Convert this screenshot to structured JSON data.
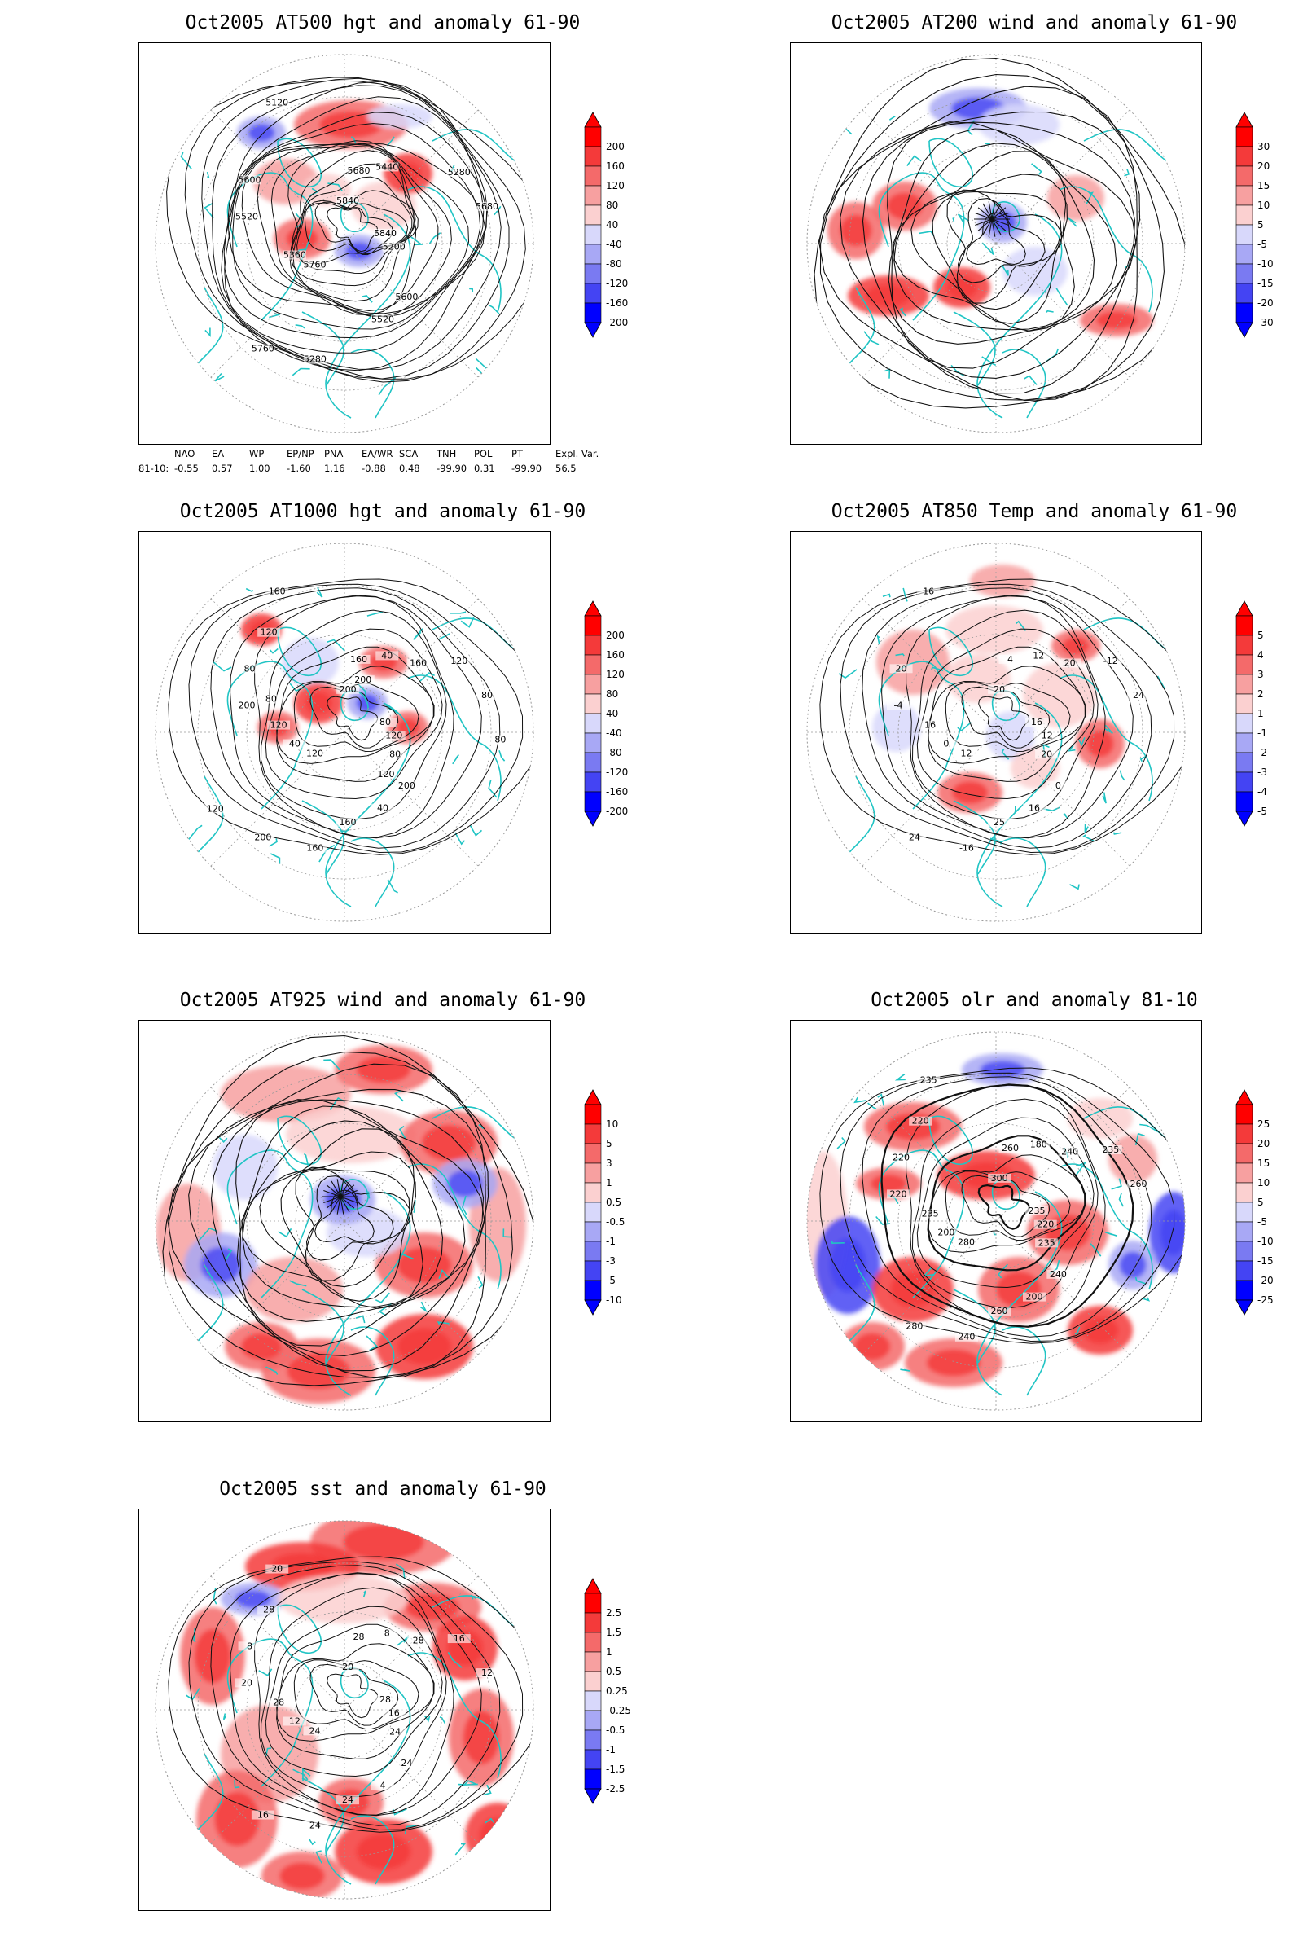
{
  "panels": [
    {
      "id": "p1",
      "title": "Oct2005 AT500 hgt and anomaly 61-90",
      "kind": "hgt",
      "contour_labels": [
        "5840",
        "5760",
        "5680",
        "5600",
        "5520",
        "5280",
        "5280",
        "5120",
        "5200",
        "5360",
        "5440",
        "5520",
        "5600",
        "5680",
        "5760",
        "5840"
      ],
      "colorbar": [
        "200",
        "160",
        "120",
        "80",
        "40",
        "-40",
        "-80",
        "-120",
        "-160",
        "-200"
      ]
    },
    {
      "id": "p2",
      "title": "Oct2005 AT200 wind and anomaly 61-90",
      "kind": "wind",
      "contour_labels": [],
      "colorbar": [
        "30",
        "20",
        "15",
        "10",
        "5",
        "-5",
        "-10",
        "-15",
        "-20",
        "-30"
      ]
    },
    {
      "id": "p3",
      "title": "Oct2005 AT1000 hgt and anomaly 61-90",
      "kind": "hgt",
      "contour_labels": [
        "80",
        "120",
        "160",
        "200",
        "200",
        "120",
        "160",
        "160",
        "120",
        "40",
        "40",
        "40",
        "80",
        "80",
        "200",
        "200",
        "80",
        "120",
        "160",
        "160",
        "120",
        "80",
        "120",
        "200",
        "120",
        "80"
      ],
      "colorbar": [
        "200",
        "160",
        "120",
        "80",
        "40",
        "-40",
        "-80",
        "-120",
        "-160",
        "-200"
      ]
    },
    {
      "id": "p4",
      "title": "Oct2005 AT850 Temp and anomaly 61-90",
      "kind": "temp",
      "contour_labels": [
        "16",
        "12",
        "4",
        "0",
        "-4",
        "-12",
        "-16",
        "16",
        "-12",
        "0",
        "12",
        "16",
        "20",
        "24",
        "24",
        "20",
        "20",
        "16",
        "20",
        "25"
      ],
      "colorbar": [
        "5",
        "4",
        "3",
        "2",
        "1",
        "-1",
        "-2",
        "-3",
        "-4",
        "-5"
      ]
    },
    {
      "id": "p5",
      "title": "Oct2005 AT925 wind and anomaly 61-90",
      "kind": "wind",
      "contour_labels": [],
      "colorbar": [
        "10",
        "5",
        "3",
        "1",
        "0.5",
        "-0.5",
        "-1",
        "-3",
        "-5",
        "-10"
      ]
    },
    {
      "id": "p6",
      "title": "Oct2005 olr and anomaly 81-10",
      "kind": "olr",
      "contour_labels": [
        "235",
        "280",
        "260",
        "240",
        "220",
        "235",
        "240",
        "235",
        "220",
        "200",
        "180",
        "200",
        "220",
        "260",
        "280",
        "300",
        "235",
        "235",
        "240",
        "260",
        "220"
      ],
      "colorbar": [
        "25",
        "20",
        "15",
        "10",
        "5",
        "-5",
        "-10",
        "-15",
        "-20",
        "-25"
      ]
    },
    {
      "id": "p7",
      "title": "Oct2005 sst and anomaly 61-90",
      "kind": "sst",
      "contour_labels": [
        "28",
        "24",
        "28",
        "24",
        "20",
        "16",
        "24",
        "20",
        "16",
        "12",
        "8",
        "4",
        "8",
        "12",
        "16",
        "20",
        "24",
        "28",
        "28",
        "24",
        "28"
      ],
      "colorbar": [
        "2.5",
        "1.5",
        "1",
        "0.5",
        "0.25",
        "-0.25",
        "-0.5",
        "-1",
        "-1.5",
        "-2.5"
      ]
    }
  ],
  "indices": {
    "headers": [
      "NAO",
      "EA",
      "WP",
      "EP/NP",
      "PNA",
      "EA/WR",
      "SCA",
      "TNH",
      "POL",
      "PT",
      "Expl. Var."
    ],
    "row_label": "81-10:",
    "values": [
      "-0.55",
      "0.57",
      "1.00",
      "-1.60",
      "1.16",
      "-0.88",
      "0.48",
      "-99.90",
      "0.31",
      "-99.90",
      "56.5"
    ]
  },
  "colors": {
    "coast": "#20c4c4",
    "pos": [
      "#ff0000",
      "#f43a3a",
      "#f46a6a",
      "#f7a0a0",
      "#fbd0d0"
    ],
    "neg": [
      "#d8d8fb",
      "#a8a8f5",
      "#7a7af2",
      "#4444f3",
      "#0000ff"
    ]
  }
}
